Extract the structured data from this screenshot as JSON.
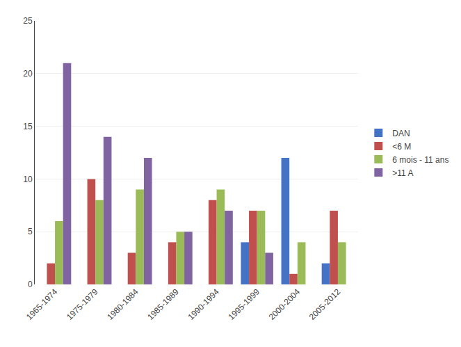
{
  "chart_data": {
    "type": "bar",
    "categories": [
      "1965-1974",
      "1975-1979",
      "1980-1984",
      "1985-1989",
      "1990-1994",
      "1995-1999",
      "2000-2004",
      "2005-2012"
    ],
    "series": [
      {
        "name": "DAN",
        "color": "#4472C4",
        "values": [
          0,
          0,
          0,
          0,
          0,
          4,
          12,
          2
        ]
      },
      {
        "name": "<6 M",
        "color": "#C0504D",
        "values": [
          2,
          10,
          3,
          4,
          8,
          7,
          1,
          7
        ]
      },
      {
        "name": "6 mois - 11 ans",
        "color": "#9BBB59",
        "values": [
          6,
          8,
          9,
          5,
          9,
          7,
          4,
          4
        ]
      },
      {
        "name": ">11 A",
        "color": "#8064A2",
        "values": [
          21,
          14,
          12,
          5,
          7,
          3,
          0,
          0
        ]
      }
    ],
    "ylim": [
      0,
      25
    ],
    "yticks": [
      0,
      5,
      10,
      15,
      20,
      25
    ],
    "grid": true,
    "legend": "right"
  }
}
